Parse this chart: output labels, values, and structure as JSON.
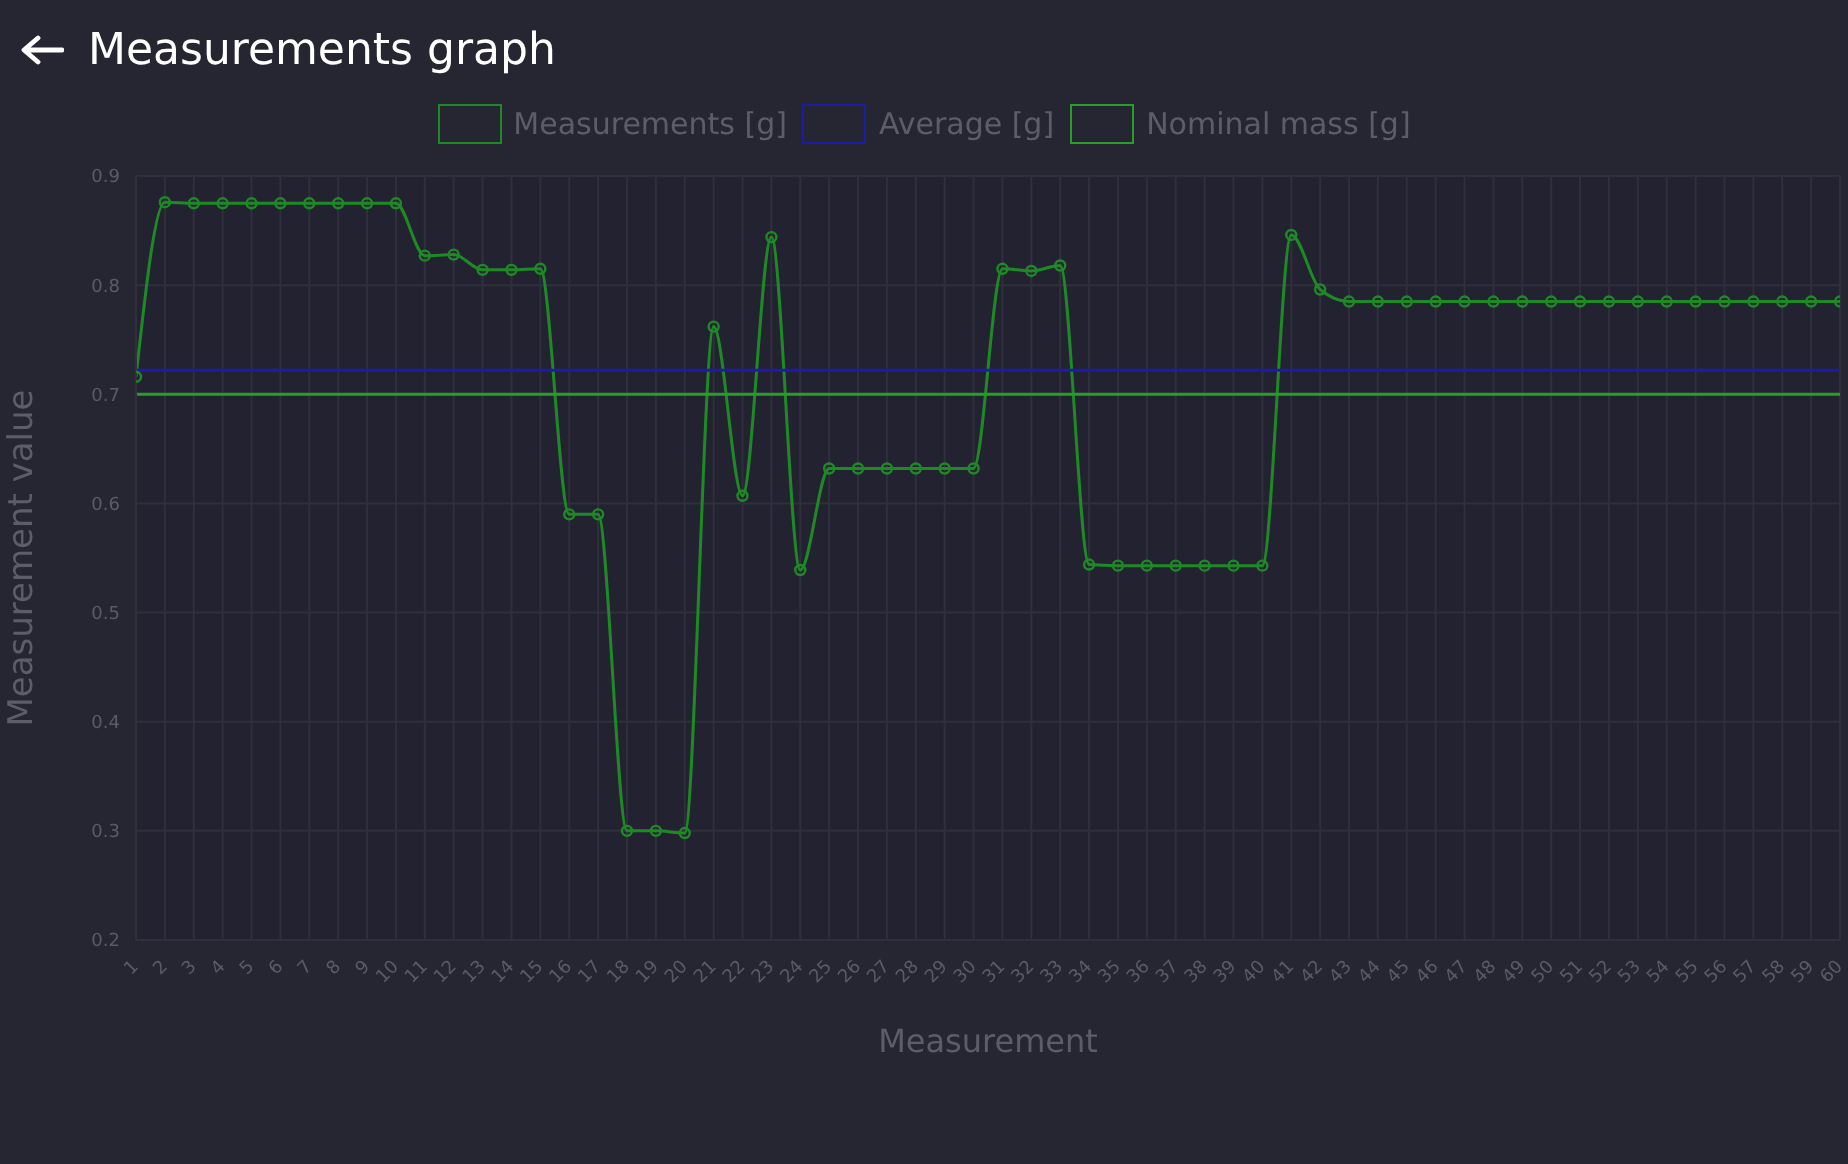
{
  "chart_data": {
    "type": "line",
    "title": "Measurements graph",
    "xlabel": "Measurement",
    "ylabel": "Measurement value",
    "x": [
      1,
      2,
      3,
      4,
      5,
      6,
      7,
      8,
      9,
      10,
      11,
      12,
      13,
      14,
      15,
      16,
      17,
      18,
      19,
      20,
      21,
      22,
      23,
      24,
      25,
      26,
      27,
      28,
      29,
      30,
      31,
      32,
      33,
      34,
      35,
      36,
      37,
      38,
      39,
      40,
      41,
      42,
      43,
      44,
      45,
      46,
      47,
      48,
      49,
      50,
      51,
      52,
      53,
      54,
      55,
      56,
      57,
      58,
      59,
      60
    ],
    "series": [
      {
        "name": "Measurements [g]",
        "color": "#1e8a26",
        "marker": "circle",
        "values": [
          0.716,
          0.876,
          0.875,
          0.875,
          0.875,
          0.875,
          0.875,
          0.875,
          0.875,
          0.875,
          0.827,
          0.828,
          0.814,
          0.814,
          0.815,
          0.59,
          0.59,
          0.3,
          0.3,
          0.298,
          0.762,
          0.607,
          0.844,
          0.539,
          0.632,
          0.632,
          0.632,
          0.632,
          0.632,
          0.632,
          0.815,
          0.813,
          0.818,
          0.544,
          0.543,
          0.543,
          0.543,
          0.543,
          0.543,
          0.543,
          0.846,
          0.796,
          0.785,
          0.785,
          0.785,
          0.785,
          0.785,
          0.785,
          0.785,
          0.785,
          0.785,
          0.785,
          0.785,
          0.785,
          0.785,
          0.785,
          0.785,
          0.785,
          0.785,
          0.785
        ]
      },
      {
        "name": "Average [g]",
        "color": "#1c1ca8",
        "marker": "none",
        "values": [
          0.722,
          0.722,
          0.722,
          0.722,
          0.722,
          0.722,
          0.722,
          0.722,
          0.722,
          0.722,
          0.722,
          0.722,
          0.722,
          0.722,
          0.722,
          0.722,
          0.722,
          0.722,
          0.722,
          0.722,
          0.722,
          0.722,
          0.722,
          0.722,
          0.722,
          0.722,
          0.722,
          0.722,
          0.722,
          0.722,
          0.722,
          0.722,
          0.722,
          0.722,
          0.722,
          0.722,
          0.722,
          0.722,
          0.722,
          0.722,
          0.722,
          0.722,
          0.722,
          0.722,
          0.722,
          0.722,
          0.722,
          0.722,
          0.722,
          0.722,
          0.722,
          0.722,
          0.722,
          0.722,
          0.722,
          0.722,
          0.722,
          0.722,
          0.722,
          0.722
        ]
      },
      {
        "name": "Nominal mass [g]",
        "color": "#2a9c2a",
        "marker": "none",
        "values": [
          0.7,
          0.7,
          0.7,
          0.7,
          0.7,
          0.7,
          0.7,
          0.7,
          0.7,
          0.7,
          0.7,
          0.7,
          0.7,
          0.7,
          0.7,
          0.7,
          0.7,
          0.7,
          0.7,
          0.7,
          0.7,
          0.7,
          0.7,
          0.7,
          0.7,
          0.7,
          0.7,
          0.7,
          0.7,
          0.7,
          0.7,
          0.7,
          0.7,
          0.7,
          0.7,
          0.7,
          0.7,
          0.7,
          0.7,
          0.7,
          0.7,
          0.7,
          0.7,
          0.7,
          0.7,
          0.7,
          0.7,
          0.7,
          0.7,
          0.7,
          0.7,
          0.7,
          0.7,
          0.7,
          0.7,
          0.7,
          0.7,
          0.7,
          0.7,
          0.7
        ]
      }
    ],
    "xlim": [
      1,
      60
    ],
    "xticks": [
      1,
      2,
      3,
      4,
      5,
      6,
      7,
      8,
      9,
      10,
      11,
      12,
      13,
      14,
      15,
      16,
      17,
      18,
      19,
      20,
      21,
      22,
      23,
      24,
      25,
      26,
      27,
      28,
      29,
      30,
      31,
      32,
      33,
      34,
      35,
      36,
      37,
      38,
      39,
      40,
      41,
      42,
      43,
      44,
      45,
      46,
      47,
      48,
      49,
      50,
      51,
      52,
      53,
      54,
      55,
      56,
      57,
      58,
      59,
      60
    ],
    "ylim": [
      0.2,
      0.9
    ],
    "yticks": [
      0.2,
      0.3,
      0.4,
      0.5,
      0.6,
      0.7,
      0.8,
      0.9
    ],
    "grid": true,
    "legend": "top",
    "line_style": "solid"
  }
}
